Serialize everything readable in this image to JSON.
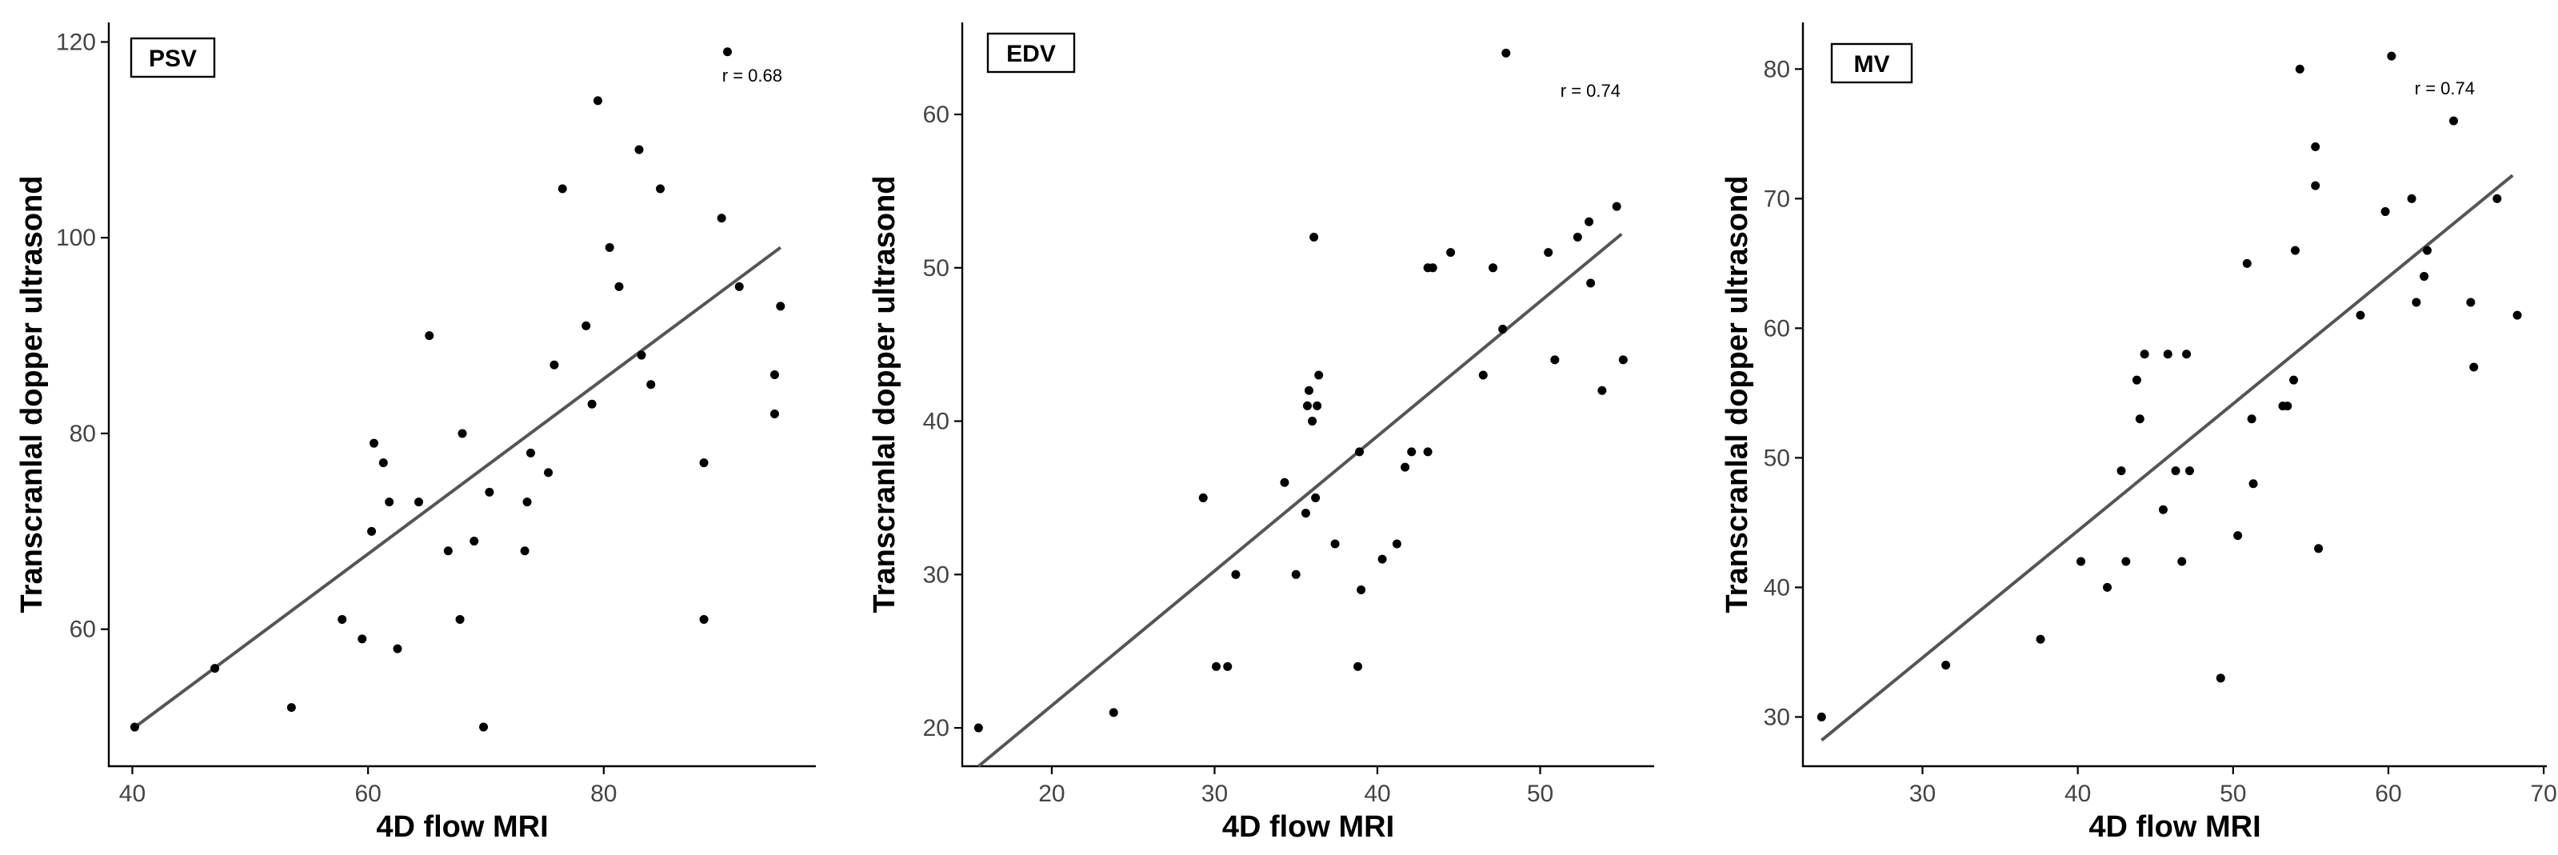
{
  "chart_data": [
    {
      "type": "scatter",
      "panel_label": "PSV",
      "annotation": "r = 0.68",
      "xlabel": "4D flow MRI",
      "ylabel": "Transcranlal dopper ultrasond",
      "xlim": [
        38,
        98
      ],
      "ylim": [
        46,
        122
      ],
      "xticks": [
        "40",
        "60",
        "80"
      ],
      "yticks": [
        "60",
        "80",
        "100",
        "120"
      ],
      "grid": false,
      "fit_line": {
        "x": [
          40,
          95
        ],
        "y": [
          49.8,
          99
        ]
      },
      "points": [
        [
          40.2,
          50
        ],
        [
          47,
          56
        ],
        [
          53.5,
          52
        ],
        [
          57.8,
          61
        ],
        [
          59.5,
          59
        ],
        [
          60.3,
          70
        ],
        [
          60.5,
          79
        ],
        [
          61.3,
          77
        ],
        [
          61.8,
          73
        ],
        [
          62.5,
          58
        ],
        [
          64.3,
          73
        ],
        [
          65.2,
          90
        ],
        [
          66.8,
          68
        ],
        [
          67.8,
          61
        ],
        [
          68,
          80
        ],
        [
          69,
          69
        ],
        [
          69.8,
          50
        ],
        [
          70.3,
          74
        ],
        [
          73.3,
          68
        ],
        [
          73.5,
          73
        ],
        [
          73.8,
          78
        ],
        [
          75.3,
          76
        ],
        [
          75.8,
          87
        ],
        [
          76.5,
          105
        ],
        [
          78.5,
          91
        ],
        [
          79,
          83
        ],
        [
          79.5,
          114
        ],
        [
          80.5,
          99
        ],
        [
          81.3,
          95
        ],
        [
          83,
          109
        ],
        [
          83.2,
          88
        ],
        [
          84,
          85
        ],
        [
          84.8,
          105
        ],
        [
          88.5,
          77
        ],
        [
          88.5,
          61
        ],
        [
          90,
          102
        ],
        [
          90.5,
          119
        ],
        [
          91.5,
          95
        ],
        [
          94.5,
          86
        ],
        [
          94.5,
          82
        ],
        [
          95,
          93
        ]
      ]
    },
    {
      "type": "scatter",
      "panel_label": "EDV",
      "annotation": "r = 0.74",
      "xlabel": "4D flow MRI",
      "ylabel": "Transcranlal dopper ultrasond",
      "xlim": [
        14.5,
        57
      ],
      "ylim": [
        17.5,
        66
      ],
      "xticks": [
        "20",
        "30",
        "40",
        "50"
      ],
      "yticks": [
        "20",
        "30",
        "40",
        "50",
        "60"
      ],
      "grid": false,
      "fit_line": {
        "x": [
          15.5,
          55
        ],
        "y": [
          17.5,
          52.2
        ]
      },
      "points": [
        [
          15.5,
          20
        ],
        [
          23.8,
          21
        ],
        [
          29.3,
          35
        ],
        [
          30.1,
          24
        ],
        [
          30.8,
          24
        ],
        [
          31.3,
          30
        ],
        [
          34.3,
          36
        ],
        [
          35,
          30
        ],
        [
          35.6,
          34
        ],
        [
          35.7,
          41
        ],
        [
          35.8,
          42
        ],
        [
          36,
          40
        ],
        [
          36.1,
          52
        ],
        [
          36.2,
          35
        ],
        [
          36.3,
          41
        ],
        [
          36.4,
          43
        ],
        [
          37.4,
          32
        ],
        [
          38.8,
          24
        ],
        [
          38.9,
          38
        ],
        [
          39,
          29
        ],
        [
          40.3,
          31
        ],
        [
          41.2,
          32
        ],
        [
          41.7,
          37
        ],
        [
          42.1,
          38
        ],
        [
          43.1,
          38
        ],
        [
          43.1,
          50
        ],
        [
          43.4,
          50
        ],
        [
          44.5,
          51
        ],
        [
          46.5,
          43
        ],
        [
          47.1,
          50
        ],
        [
          47.7,
          46
        ],
        [
          47.9,
          64
        ],
        [
          50.5,
          51
        ],
        [
          50.9,
          44
        ],
        [
          52.3,
          52
        ],
        [
          53,
          53
        ],
        [
          53.1,
          49
        ],
        [
          53.8,
          42
        ],
        [
          54.7,
          54
        ],
        [
          55.1,
          44
        ]
      ]
    },
    {
      "type": "scatter",
      "panel_label": "MV",
      "annotation": "r = 0.74",
      "xlabel": "4D flow MRI",
      "ylabel": "Transcranlal dopper ultrasond",
      "xlim": [
        22.3,
        70.2
      ],
      "ylim": [
        26.2,
        83.6
      ],
      "xticks": [
        "30",
        "40",
        "50",
        "60",
        "70"
      ],
      "yticks": [
        "30",
        "40",
        "50",
        "60",
        "70",
        "80"
      ],
      "grid": false,
      "fit_line": {
        "x": [
          23.5,
          68
        ],
        "y": [
          28.2,
          71.8
        ]
      },
      "points": [
        [
          23.5,
          30
        ],
        [
          31.5,
          34
        ],
        [
          37.6,
          36
        ],
        [
          40.2,
          42
        ],
        [
          41.9,
          40
        ],
        [
          42.8,
          49
        ],
        [
          43.1,
          42
        ],
        [
          43.8,
          56
        ],
        [
          44,
          53
        ],
        [
          44.3,
          58
        ],
        [
          45.5,
          46
        ],
        [
          45.8,
          58
        ],
        [
          46.3,
          49
        ],
        [
          46.7,
          42
        ],
        [
          47,
          58
        ],
        [
          47.2,
          49
        ],
        [
          49.2,
          33
        ],
        [
          50.3,
          44
        ],
        [
          50.9,
          65
        ],
        [
          51.2,
          53
        ],
        [
          51.3,
          48
        ],
        [
          53.2,
          54
        ],
        [
          53.5,
          54
        ],
        [
          53.9,
          56
        ],
        [
          54,
          66
        ],
        [
          54.3,
          80
        ],
        [
          55.3,
          74
        ],
        [
          55.3,
          71
        ],
        [
          55.5,
          43
        ],
        [
          58.2,
          61
        ],
        [
          59.8,
          69
        ],
        [
          60.2,
          81
        ],
        [
          61.5,
          70
        ],
        [
          61.8,
          62
        ],
        [
          62.3,
          64
        ],
        [
          62.5,
          66
        ],
        [
          64.2,
          76
        ],
        [
          65.3,
          62
        ],
        [
          65.5,
          57
        ],
        [
          67,
          70
        ],
        [
          68.3,
          61
        ]
      ]
    }
  ]
}
